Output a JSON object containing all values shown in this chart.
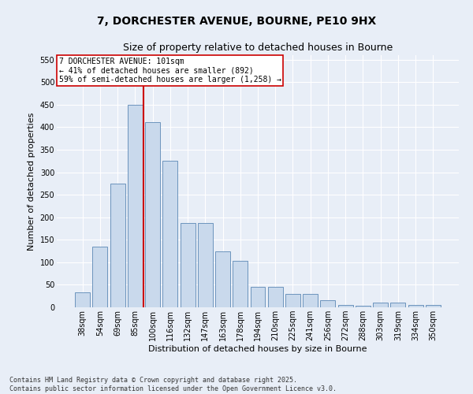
{
  "title": "7, DORCHESTER AVENUE, BOURNE, PE10 9HX",
  "subtitle": "Size of property relative to detached houses in Bourne",
  "xlabel": "Distribution of detached houses by size in Bourne",
  "ylabel": "Number of detached properties",
  "categories": [
    "38sqm",
    "54sqm",
    "69sqm",
    "85sqm",
    "100sqm",
    "116sqm",
    "132sqm",
    "147sqm",
    "163sqm",
    "178sqm",
    "194sqm",
    "210sqm",
    "225sqm",
    "241sqm",
    "256sqm",
    "272sqm",
    "288sqm",
    "303sqm",
    "319sqm",
    "334sqm",
    "350sqm"
  ],
  "values": [
    33,
    135,
    275,
    450,
    412,
    325,
    188,
    188,
    125,
    103,
    46,
    45,
    30,
    30,
    15,
    6,
    4,
    10,
    10,
    5,
    5
  ],
  "bar_color": "#c9d9ec",
  "bar_edge_color": "#5b87b5",
  "vline_index": 4,
  "property_line_label": "7 DORCHESTER AVENUE: 101sqm",
  "annotation_line1": "← 41% of detached houses are smaller (892)",
  "annotation_line2": "59% of semi-detached houses are larger (1,258) →",
  "annotation_box_color": "#ffffff",
  "annotation_box_edge": "#cc0000",
  "vline_color": "#cc0000",
  "ylim": [
    0,
    560
  ],
  "yticks": [
    0,
    50,
    100,
    150,
    200,
    250,
    300,
    350,
    400,
    450,
    500,
    550
  ],
  "background_color": "#e8eef7",
  "grid_color": "#ffffff",
  "footer": "Contains HM Land Registry data © Crown copyright and database right 2025.\nContains public sector information licensed under the Open Government Licence v3.0.",
  "title_fontsize": 10,
  "subtitle_fontsize": 9,
  "xlabel_fontsize": 8,
  "ylabel_fontsize": 8,
  "tick_fontsize": 7,
  "footer_fontsize": 6,
  "annot_fontsize": 7
}
